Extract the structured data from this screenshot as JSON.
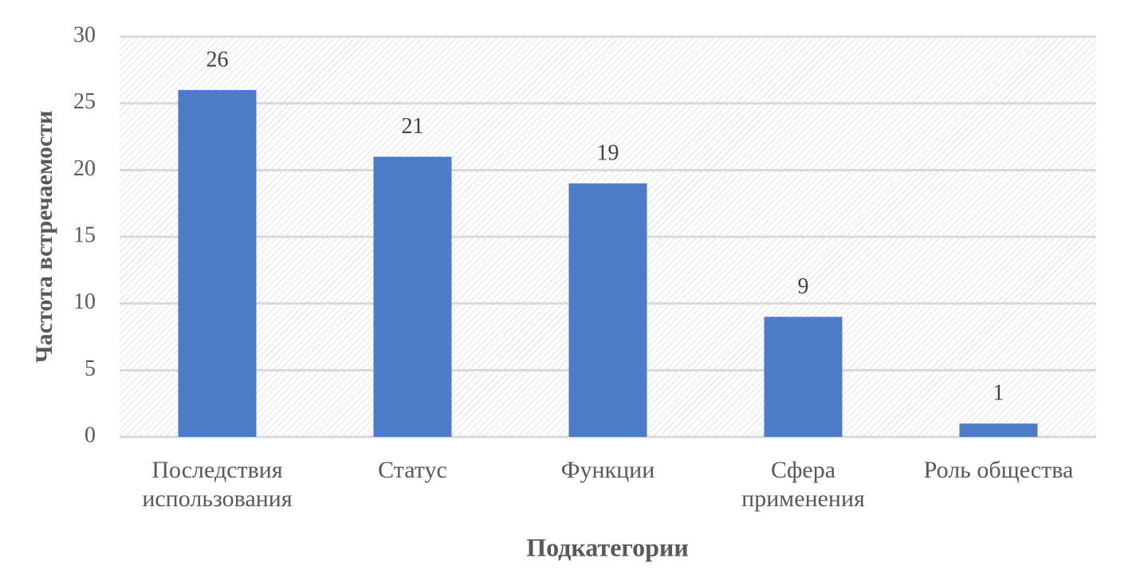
{
  "chart_data": {
    "type": "bar",
    "x_label": "Подкатегории",
    "y_label": "Частота встречаемости",
    "categories": [
      "Последствия использования",
      "Статус",
      "Функции",
      "Сфера применения",
      "Роль общества"
    ],
    "values": [
      26,
      21,
      19,
      9,
      1
    ],
    "color": "#4e7bc8",
    "ylim": [
      0,
      30
    ],
    "yticks": [
      0,
      5,
      10,
      15,
      20,
      25,
      30
    ],
    "grid": true
  }
}
